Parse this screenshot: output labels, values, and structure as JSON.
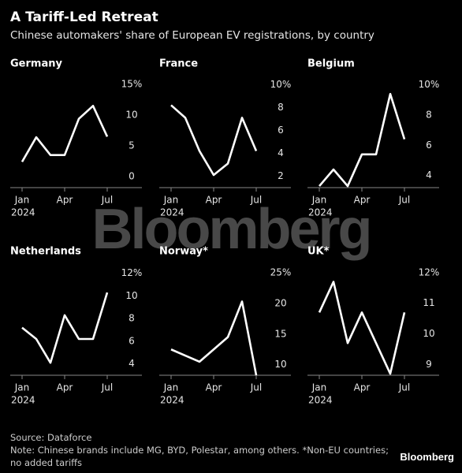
{
  "title": "A Tariff-Led Retreat",
  "subtitle": "Chinese automakers' share of European EV registrations, by country",
  "watermark": "Bloomberg",
  "source": "Source: Dataforce",
  "note": "Note: Chinese brands include MG, BYD, Polestar, among others. *Non-EU countries; no added tariffs",
  "logo": "Bloomberg",
  "chart_data": [
    {
      "type": "line",
      "title": "Germany",
      "categories": [
        "Jan",
        null,
        null,
        "Apr",
        null,
        null,
        "Jul"
      ],
      "year_label": "2024",
      "values": [
        2.4,
        6.4,
        3.5,
        3.5,
        9.4,
        11.5,
        6.5
      ],
      "color": "#ffffff",
      "ylim": [
        -1.8,
        15.9
      ],
      "yticks": [
        0,
        5,
        10,
        {
          "value": 15,
          "label": "15%"
        }
      ]
    },
    {
      "type": "line",
      "title": "France",
      "categories": [
        "Jan",
        null,
        null,
        "Apr",
        null,
        null,
        "Jul"
      ],
      "year_label": "2024",
      "values": [
        8.2,
        7.1,
        4.2,
        2.1,
        3.1,
        7.1,
        4.2
      ],
      "color": "#ffffff",
      "ylim": [
        1,
        10.5
      ],
      "yticks": [
        2,
        4,
        6,
        8,
        {
          "value": 10,
          "label": "10%"
        }
      ]
    },
    {
      "type": "line",
      "title": "Belgium",
      "categories": [
        "Jan",
        null,
        null,
        "Apr",
        null,
        null,
        "Jul"
      ],
      "year_label": "2024",
      "values": [
        3.3,
        4.4,
        3.3,
        5.4,
        5.4,
        9.4,
        6.4
      ],
      "color": "#ffffff",
      "ylim": [
        3.2,
        10.4
      ],
      "yticks": [
        4,
        6,
        8,
        {
          "value": 10,
          "label": "10%"
        }
      ]
    },
    {
      "type": "line",
      "title": "Netherlands",
      "categories": [
        "Jan",
        null,
        null,
        "Apr",
        null,
        null,
        "Jul"
      ],
      "year_label": "2024",
      "values": [
        7.2,
        6.2,
        4.1,
        8.3,
        6.2,
        6.2,
        10.3
      ],
      "color": "#ffffff",
      "ylim": [
        3,
        12.6
      ],
      "yticks": [
        4,
        6,
        8,
        10,
        {
          "value": 12,
          "label": "12%"
        }
      ]
    },
    {
      "type": "line",
      "title": "Norway*",
      "categories": [
        "Jan",
        null,
        null,
        "Apr",
        null,
        null,
        "Jul"
      ],
      "year_label": "2024",
      "values": [
        12.5,
        11.5,
        10.5,
        12.5,
        14.5,
        20.3,
        8.3
      ],
      "color": "#ffffff",
      "ylim": [
        8.3,
        26
      ],
      "yticks": [
        10,
        15,
        20,
        {
          "value": 25,
          "label": "25%"
        }
      ]
    },
    {
      "type": "line",
      "title": "UK*",
      "categories": [
        "Jan",
        null,
        null,
        "Apr",
        null,
        null,
        "Jul"
      ],
      "year_label": "2024",
      "values": [
        10.7,
        11.7,
        9.7,
        10.7,
        9.7,
        8.7,
        10.7
      ],
      "color": "#ffffff",
      "ylim": [
        8.65,
        12.2
      ],
      "yticks": [
        9,
        10,
        11,
        {
          "value": 12,
          "label": "12%"
        }
      ]
    }
  ]
}
